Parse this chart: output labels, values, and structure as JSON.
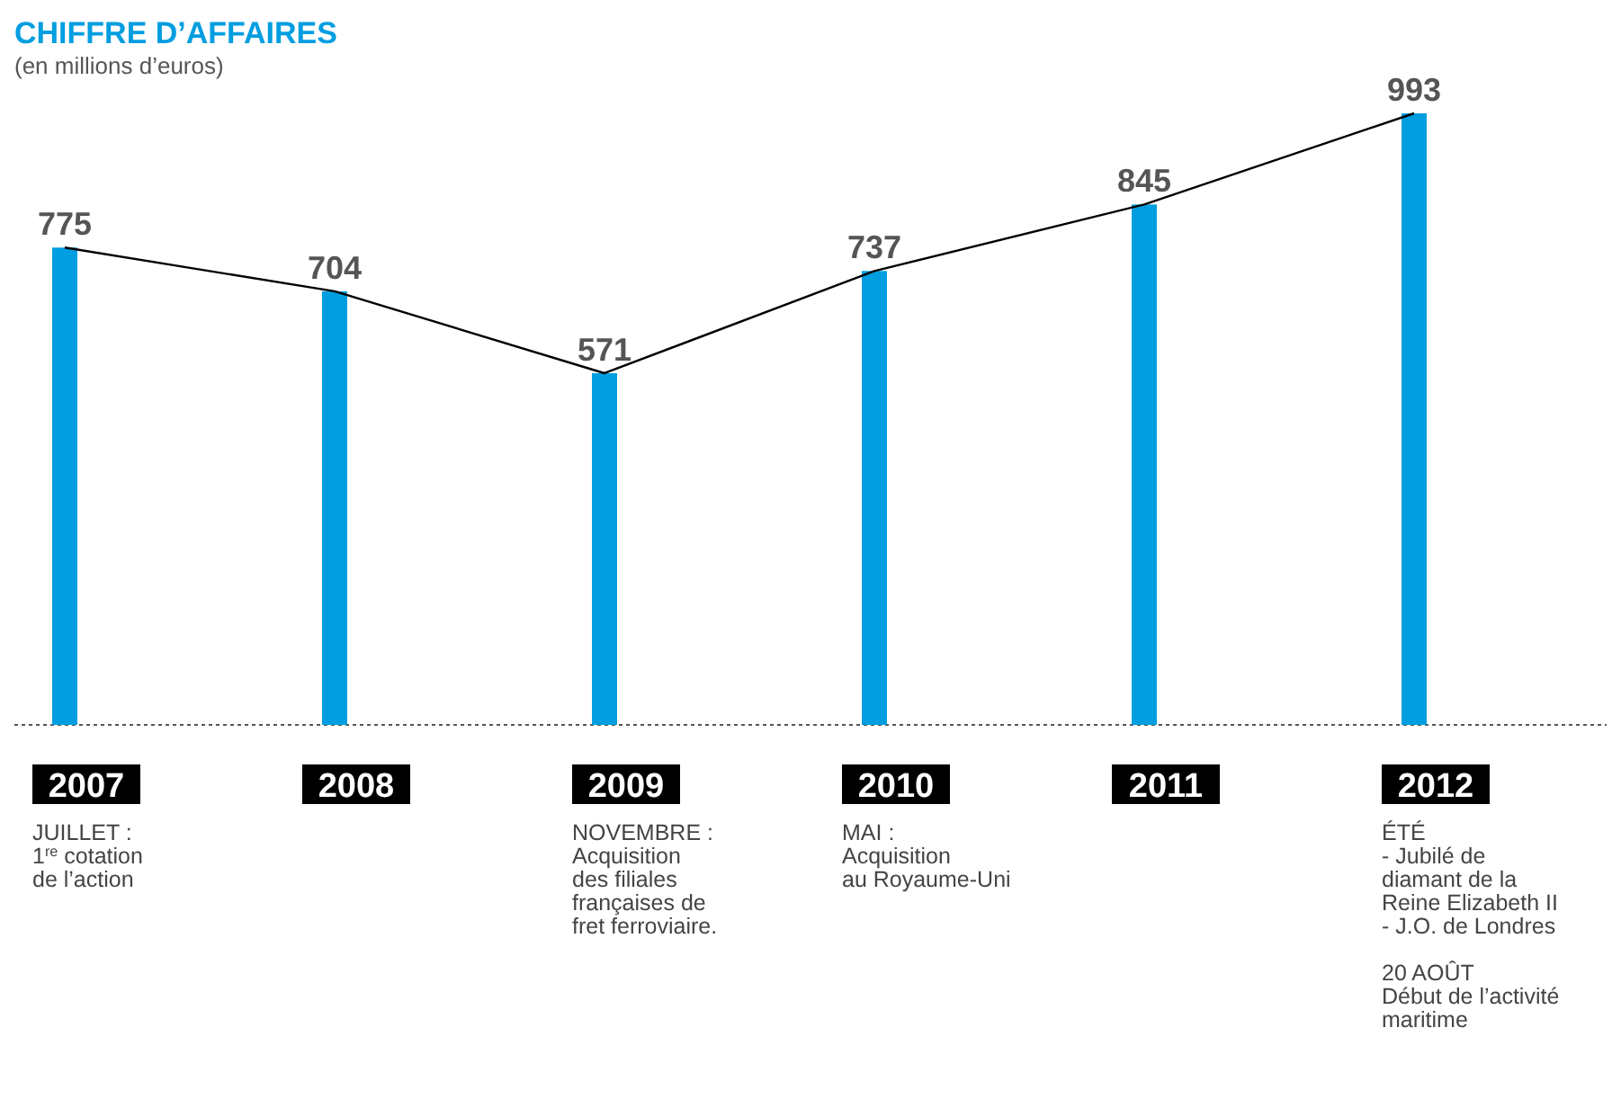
{
  "chart_data": {
    "type": "bar",
    "title": "CHIFFRE D’AFFAIRES",
    "subtitle": "(en millions d’euros)",
    "categories": [
      "2007\nJUILLET :\n1$^{re}$ cotation\nde l’action",
      "2008",
      "2009\nNOVEMBRE :\nAcquisition\ndes filiales\nfrançaises de\nfret ferroviaire.",
      "2010\nMAI :\nAcquisition\nau Royaume-Uni",
      "2011",
      "2012\nÉTÉ\n- Jubilé de\ndiamant de la\nReine Elizabeth II\n- J.O. de Londres\n\n20 AOÛT\nDébut de l’activité\nmaritime"
    ],
    "series": [
      {
        "color": "#009ee0",
        "values": [
          775,
          704,
          571,
          737,
          845,
          993
        ],
        "value_labels": [
          "775",
          "704",
          "571",
          "737",
          "845",
          "993"
        ]
      },
      {
        "type": "line",
        "color": "#000000",
        "values": [
          775,
          704,
          571,
          737,
          845,
          993
        ]
      }
    ],
    "marker": "none",
    "line_style": "solid"
  }
}
